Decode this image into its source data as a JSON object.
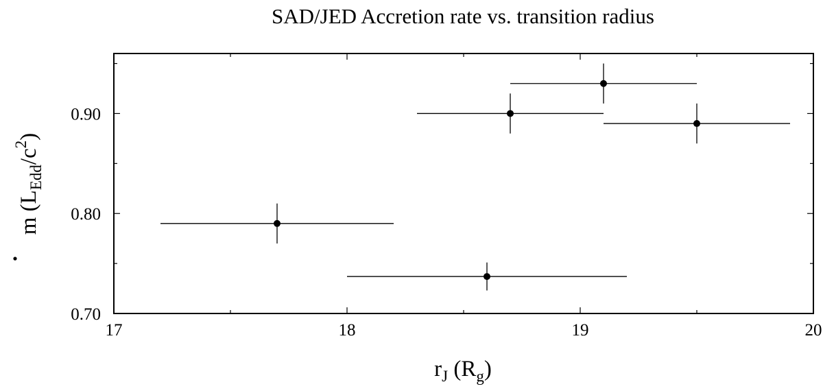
{
  "chart_data": {
    "type": "scatter",
    "title": "SAD/JED Accretion rate vs. transition radius",
    "xlabel": {
      "main": "r",
      "sub": "J",
      "rest_open": " (R",
      "sub2": "g",
      "rest_close": ")"
    },
    "ylabel": {
      "dot_char": "m",
      "open": " (L",
      "sub": "Edd",
      "mid": "/c",
      "sup": "2",
      "close": ")"
    },
    "xlim": [
      17,
      20
    ],
    "ylim": [
      0.7,
      0.96
    ],
    "x_ticks": [
      17,
      18,
      19,
      20
    ],
    "x_tick_labels": [
      "17",
      "18",
      "19",
      "20"
    ],
    "y_ticks": [
      0.7,
      0.8,
      0.9
    ],
    "y_tick_labels": [
      "0.70",
      "0.80",
      "0.90"
    ],
    "grid": false,
    "points": [
      {
        "x": 17.7,
        "y": 0.79,
        "x_err": 0.5,
        "y_err": 0.02
      },
      {
        "x": 18.6,
        "y": 0.737,
        "x_err": 0.6,
        "y_err": 0.014
      },
      {
        "x": 18.7,
        "y": 0.9,
        "x_err": 0.4,
        "y_err": 0.02
      },
      {
        "x": 19.1,
        "y": 0.93,
        "x_err": 0.4,
        "y_err": 0.02
      },
      {
        "x": 19.5,
        "y": 0.89,
        "x_err": 0.4,
        "y_err": 0.02
      }
    ]
  }
}
